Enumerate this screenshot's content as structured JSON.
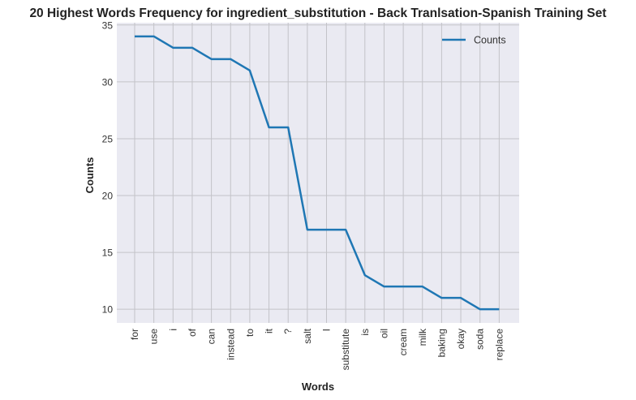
{
  "chart_data": {
    "type": "line",
    "title": "20 Highest Words Frequency for ingredient_substitution - Back Tranlsation-Spanish Training Set",
    "xlabel": "Words",
    "ylabel": "Counts",
    "categories": [
      "for",
      "use",
      "i",
      "of",
      "can",
      "instead",
      "to",
      "it",
      "?",
      "salt",
      "I",
      "substitute",
      "is",
      "oil",
      "cream",
      "milk",
      "baking",
      "okay",
      "soda",
      "replace"
    ],
    "series": [
      {
        "name": "Counts",
        "values": [
          34,
          34,
          33,
          33,
          32,
          32,
          31,
          26,
          26,
          17,
          17,
          17,
          13,
          12,
          12,
          12,
          11,
          11,
          10,
          10
        ]
      }
    ],
    "yticks": [
      10,
      15,
      20,
      25,
      30,
      35
    ],
    "ylim": [
      8.8,
      35.2
    ],
    "grid": true,
    "legend": "top-right",
    "colors": {
      "line": "#1f77b4",
      "plot_background": "#eaeaf2",
      "grid": "#c3c3c8"
    }
  }
}
